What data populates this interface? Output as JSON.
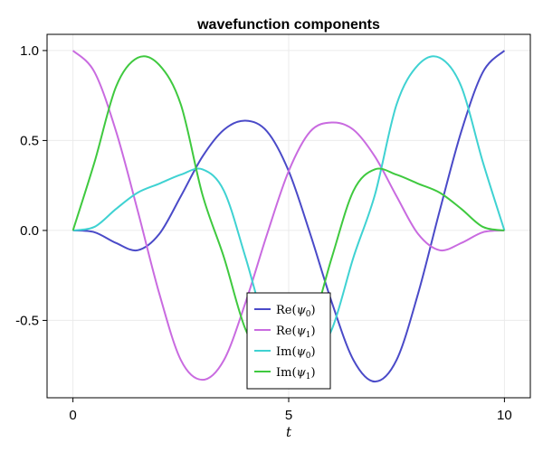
{
  "chart_data": {
    "type": "line",
    "title": "wavefunction components",
    "xlabel": "t",
    "ylabel": "",
    "xlim": [
      -0.6,
      10.6
    ],
    "ylim": [
      -0.93,
      1.09
    ],
    "xticks": [
      0,
      5,
      10
    ],
    "xtick_labels": [
      "0",
      "5",
      "10"
    ],
    "yticks": [
      -0.5,
      0.0,
      0.5,
      1.0
    ],
    "ytick_labels": [
      "-0.5",
      "0.0",
      "0.5",
      "1.0"
    ],
    "grid": true,
    "legend_position": "bottom-center",
    "x": [
      0,
      0.5,
      1,
      1.5,
      2,
      2.5,
      3,
      3.5,
      4,
      4.5,
      5,
      5.5,
      6,
      6.5,
      7,
      7.5,
      8,
      8.5,
      9,
      9.5,
      10
    ],
    "series": [
      {
        "name": "Re(ψ₀)",
        "label_main": "Re",
        "label_sym": "ψ",
        "label_sub": "0",
        "color": "#4a4ac8",
        "values": [
          0.0,
          -0.01,
          -0.07,
          -0.11,
          -0.02,
          0.19,
          0.41,
          0.56,
          0.61,
          0.55,
          0.33,
          -0.02,
          -0.4,
          -0.72,
          -0.84,
          -0.72,
          -0.35,
          0.11,
          0.55,
          0.88,
          1.0
        ]
      },
      {
        "name": "Re(ψ₁)",
        "label_main": "Re",
        "label_sym": "ψ",
        "label_sub": "1",
        "color": "#c96be0",
        "values": [
          1.0,
          0.88,
          0.55,
          0.11,
          -0.35,
          -0.72,
          -0.83,
          -0.72,
          -0.4,
          -0.02,
          0.33,
          0.55,
          0.6,
          0.56,
          0.41,
          0.19,
          -0.02,
          -0.11,
          -0.07,
          -0.01,
          0.0
        ]
      },
      {
        "name": "Im(ψ₀)",
        "label_main": "Im",
        "label_sym": "ψ",
        "label_sub": "0",
        "color": "#3fd2d2",
        "values": [
          0.0,
          0.02,
          0.12,
          0.21,
          0.26,
          0.31,
          0.34,
          0.22,
          -0.15,
          -0.55,
          -0.7,
          -0.72,
          -0.55,
          -0.15,
          0.2,
          0.7,
          0.92,
          0.96,
          0.8,
          0.38,
          0.0
        ]
      },
      {
        "name": "Im(ψ₁)",
        "label_main": "Im",
        "label_sym": "ψ",
        "label_sub": "1",
        "color": "#3fc93f",
        "values": [
          0.0,
          0.38,
          0.8,
          0.96,
          0.92,
          0.7,
          0.2,
          -0.15,
          -0.55,
          -0.72,
          -0.7,
          -0.55,
          -0.15,
          0.22,
          0.34,
          0.31,
          0.26,
          0.21,
          0.12,
          0.02,
          0.0
        ]
      }
    ]
  }
}
